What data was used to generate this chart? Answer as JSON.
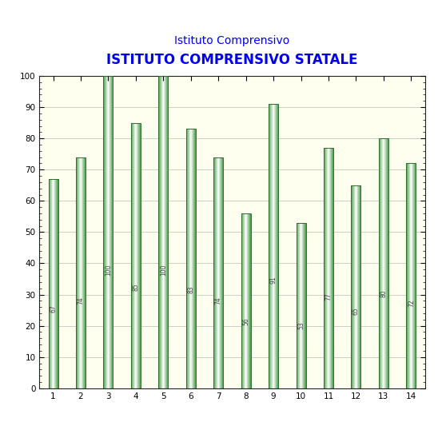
{
  "title_line1": "Istituto Comprensivo",
  "title_line2": "ISTITUTO COMPRENSIVO STATALE",
  "categories": [
    1,
    2,
    3,
    4,
    5,
    6,
    7,
    8,
    9,
    10,
    11,
    12,
    13,
    14
  ],
  "values": [
    67,
    74,
    100,
    85,
    100,
    83,
    74,
    56,
    91,
    53,
    77,
    65,
    80,
    72
  ],
  "bar_color_light": "#ffffff",
  "bar_color_dark": "#4a9e4a",
  "background_color": "#FFFFF0",
  "outer_background": "#FFFFFF",
  "title_color": "#0000EE",
  "label_color": "#444444",
  "ylim": [
    0,
    100
  ],
  "yticks": [
    0,
    10,
    20,
    30,
    40,
    50,
    60,
    70,
    80,
    90,
    100
  ],
  "bar_width": 0.35,
  "label_fontsize": 5.5,
  "title_fontsize1": 10,
  "title_fontsize2": 12
}
